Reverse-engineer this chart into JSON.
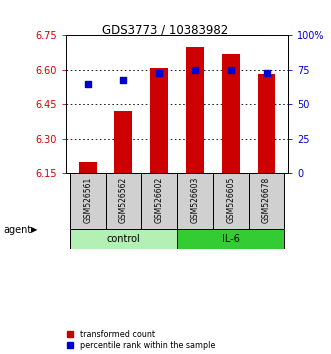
{
  "title": "GDS3773 / 10383982",
  "samples": [
    "GSM526561",
    "GSM526562",
    "GSM526602",
    "GSM526603",
    "GSM526605",
    "GSM526678"
  ],
  "transformed_counts": [
    6.2,
    6.42,
    6.61,
    6.7,
    6.67,
    6.58
  ],
  "percentile_ranks": [
    65,
    68,
    73,
    75,
    75,
    73
  ],
  "ylim_left": [
    6.15,
    6.75
  ],
  "ylim_right": [
    0,
    100
  ],
  "yticks_left": [
    6.15,
    6.3,
    6.45,
    6.6,
    6.75
  ],
  "yticks_right": [
    0,
    25,
    50,
    75,
    100
  ],
  "bar_color": "#cc0000",
  "dot_color": "#0000cc",
  "bar_width": 0.5,
  "group_colors": {
    "control": "#b3f0b3",
    "IL-6": "#33cc33"
  },
  "left_axis_color": "#cc0000",
  "right_axis_color": "#0000cc",
  "legend_labels": [
    "transformed count",
    "percentile rank within the sample"
  ],
  "agent_label": "agent"
}
